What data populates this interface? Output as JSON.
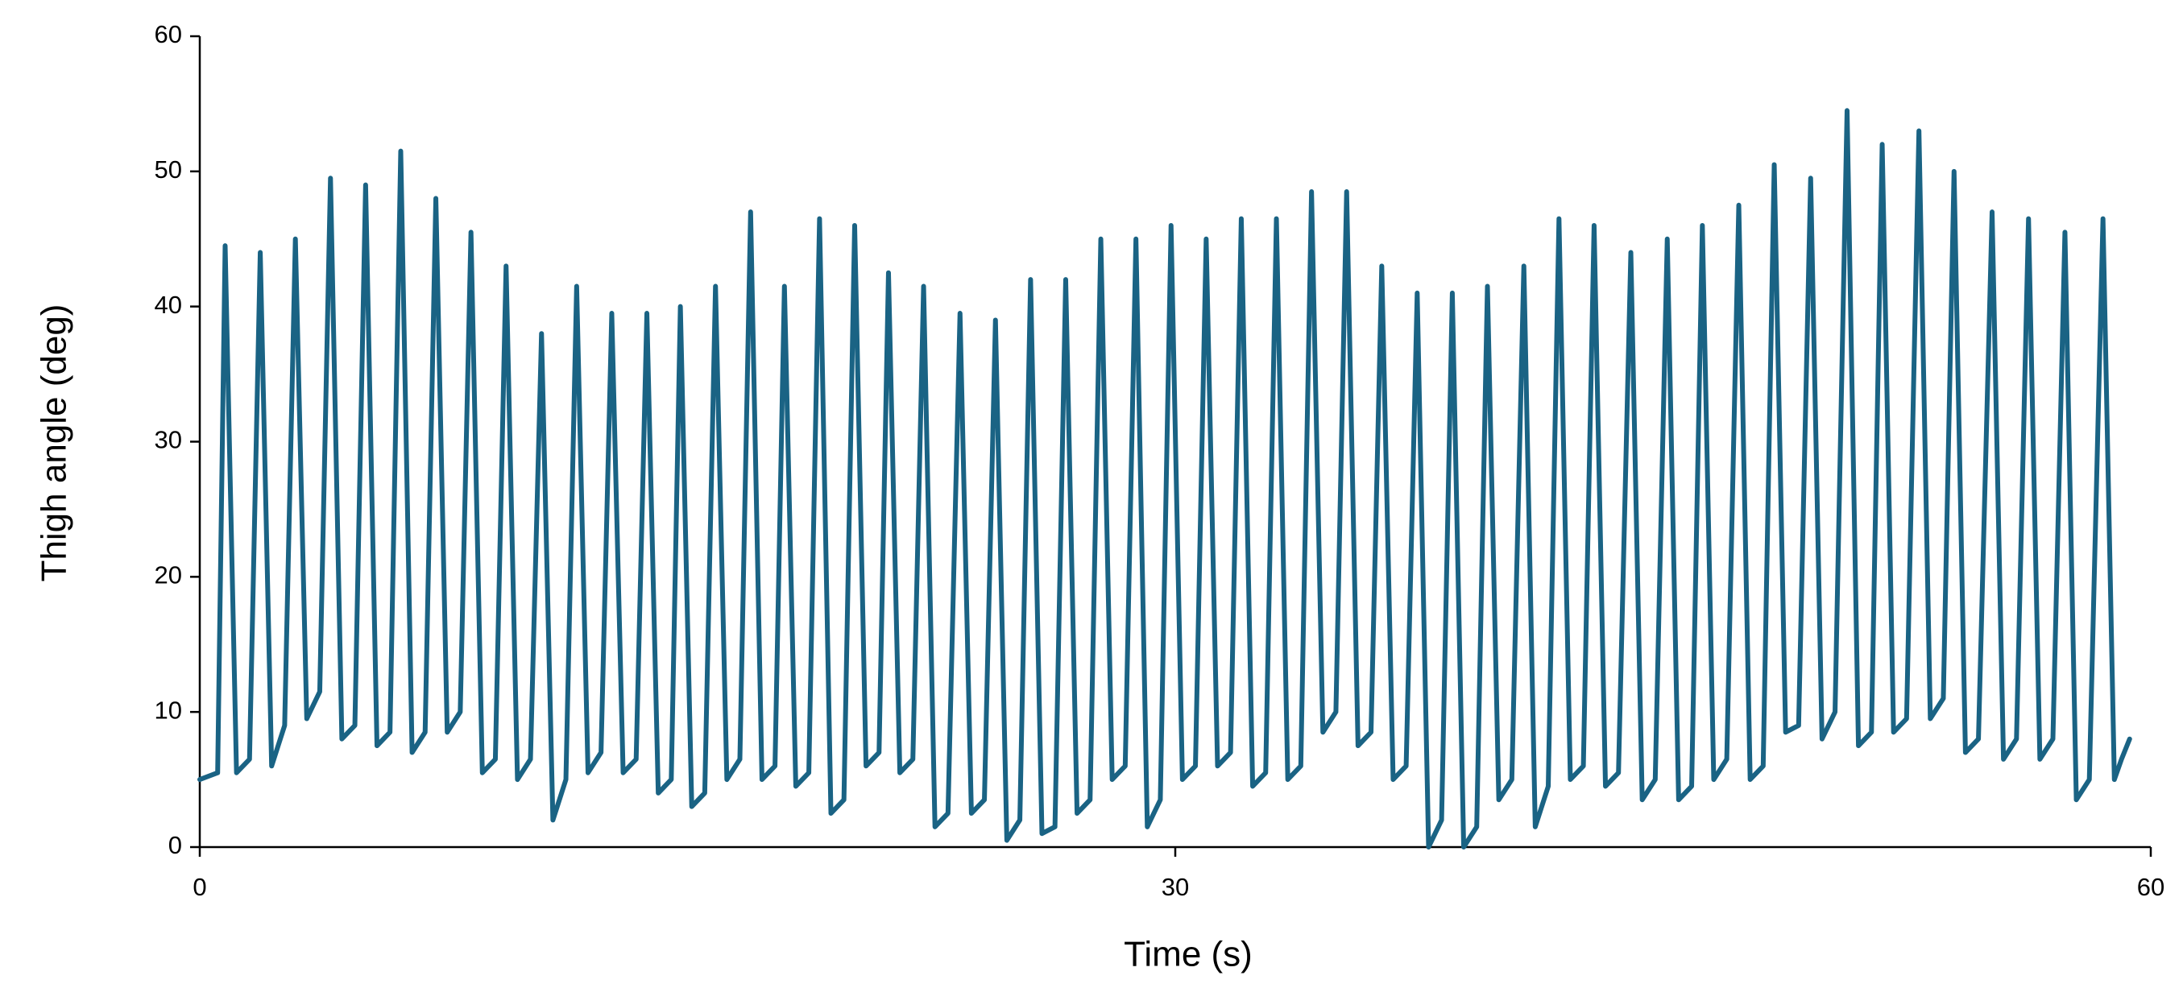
{
  "chart_data": {
    "type": "line",
    "x_label": "Time (s)",
    "y_label": "Thigh angle (deg)",
    "color": "#1a6384",
    "grid": false,
    "xlim": [
      0,
      60
    ],
    "xticks": [
      0,
      30,
      60
    ],
    "ylim": [
      0,
      60
    ],
    "yticks": [
      0,
      10,
      20,
      30,
      40,
      50,
      60
    ],
    "x": [
      0,
      0.55,
      0.78,
      1.13,
      1.53,
      1.86,
      2.21,
      2.61,
      2.94,
      3.29,
      3.69,
      4.02,
      4.37,
      4.77,
      5.1,
      5.45,
      5.85,
      6.18,
      6.53,
      6.93,
      7.26,
      7.61,
      8.01,
      8.34,
      8.69,
      9.09,
      9.42,
      9.77,
      10.17,
      10.51,
      10.86,
      11.26,
      11.59,
      11.94,
      12.34,
      12.67,
      13.02,
      13.42,
      13.75,
      14.1,
      14.5,
      14.78,
      15.13,
      15.53,
      15.86,
      16.21,
      16.61,
      16.94,
      17.29,
      17.69,
      17.98,
      18.33,
      18.73,
      19.06,
      19.41,
      19.81,
      20.14,
      20.49,
      20.89,
      21.18,
      21.53,
      21.93,
      22.26,
      22.61,
      23.01,
      23.38,
      23.73,
      24.13,
      24.47,
      24.82,
      25.22,
      25.55,
      25.9,
      26.3,
      26.63,
      26.98,
      27.38,
      27.71,
      28.06,
      28.46,
      28.79,
      29.14,
      29.54,
      29.87,
      30.22,
      30.62,
      30.95,
      31.3,
      31.7,
      32.03,
      32.38,
      32.78,
      33.11,
      33.46,
      33.86,
      34.19,
      34.54,
      34.94,
      35.27,
      35.62,
      36.02,
      36.35,
      36.7,
      37.1,
      37.44,
      37.79,
      38.19,
      38.52,
      38.87,
      39.27,
      39.6,
      39.95,
      40.35,
      40.72,
      41.07,
      41.47,
      41.8,
      42.15,
      42.55,
      42.88,
      43.23,
      43.63,
      44.01,
      44.36,
      44.76,
      45.13,
      45.48,
      45.88,
      46.21,
      46.56,
      46.96,
      47.33,
      47.68,
      48.08,
      48.42,
      48.77,
      49.17,
      49.54,
      49.89,
      50.29,
      50.66,
      51.01,
      51.41,
      51.74,
      52.09,
      52.49,
      52.87,
      53.22,
      53.62,
      53.95,
      54.3,
      54.7,
      55.12,
      55.47,
      55.87,
      56.24,
      56.59,
      56.99,
      57.36,
      57.71,
      58.11,
      58.53,
      58.88,
      59.1,
      59.35
    ],
    "values": [
      5,
      5.5,
      44.5,
      5.5,
      6.5,
      44,
      6,
      9,
      45,
      9.5,
      11.5,
      49.5,
      8,
      9,
      49,
      7.5,
      8.5,
      51.5,
      7,
      8.5,
      48,
      8.5,
      10,
      45.5,
      5.5,
      6.5,
      43,
      5,
      6.5,
      38,
      2,
      5,
      41.5,
      5.5,
      7,
      39.5,
      5.5,
      6.5,
      39.5,
      4,
      5,
      40,
      3,
      4,
      41.5,
      5,
      6.5,
      47,
      5,
      6,
      41.5,
      4.5,
      5.5,
      46.5,
      2.5,
      3.5,
      46,
      6,
      7,
      42.5,
      5.5,
      6.5,
      41.5,
      1.5,
      2.5,
      39.5,
      2.5,
      3.5,
      39,
      0.5,
      2,
      42,
      1,
      1.5,
      42,
      2.5,
      3.5,
      45,
      5,
      6,
      45,
      1.5,
      3.5,
      46,
      5,
      6,
      45,
      6,
      7,
      46.5,
      4.5,
      5.5,
      46.5,
      5,
      6,
      48.5,
      8.5,
      10,
      48.5,
      7.5,
      8.5,
      43,
      5,
      6,
      41,
      0,
      2,
      41,
      0,
      1.5,
      41.5,
      3.5,
      5,
      43,
      1.5,
      4.5,
      46.5,
      5,
      6,
      46,
      4.5,
      5.5,
      44,
      3.5,
      5,
      45,
      3.5,
      4.5,
      46,
      5,
      6.5,
      47.5,
      5,
      6,
      50.5,
      8.5,
      9,
      49.5,
      8,
      10,
      54.5,
      7.5,
      8.5,
      52,
      8.5,
      9.5,
      53,
      9.5,
      11,
      50,
      7,
      8,
      47,
      6.5,
      8,
      46.5,
      6.5,
      8,
      45.5,
      3.5,
      5,
      46.5,
      5,
      6.5,
      8
    ]
  }
}
